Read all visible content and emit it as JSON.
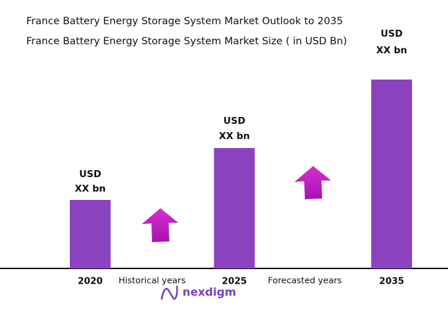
{
  "chart_data": {
    "type": "bar",
    "title": "France Battery Energy Storage System Market Outlook to 2035",
    "subtitle": "France Battery Energy Storage System Market Size ( in USD Bn)",
    "categories": [
      "2020",
      "2025",
      "2035"
    ],
    "values": [
      99,
      174,
      273
    ],
    "value_labels": [
      [
        "USD",
        "XX bn"
      ],
      [
        "USD",
        "XX bn"
      ],
      [
        "USD",
        "XX bn"
      ]
    ],
    "color": "#8a42bf",
    "ylim": [
      0,
      300
    ],
    "annotations": [
      "Historical years",
      "Forecasted years"
    ],
    "brand": "nexdigm"
  }
}
